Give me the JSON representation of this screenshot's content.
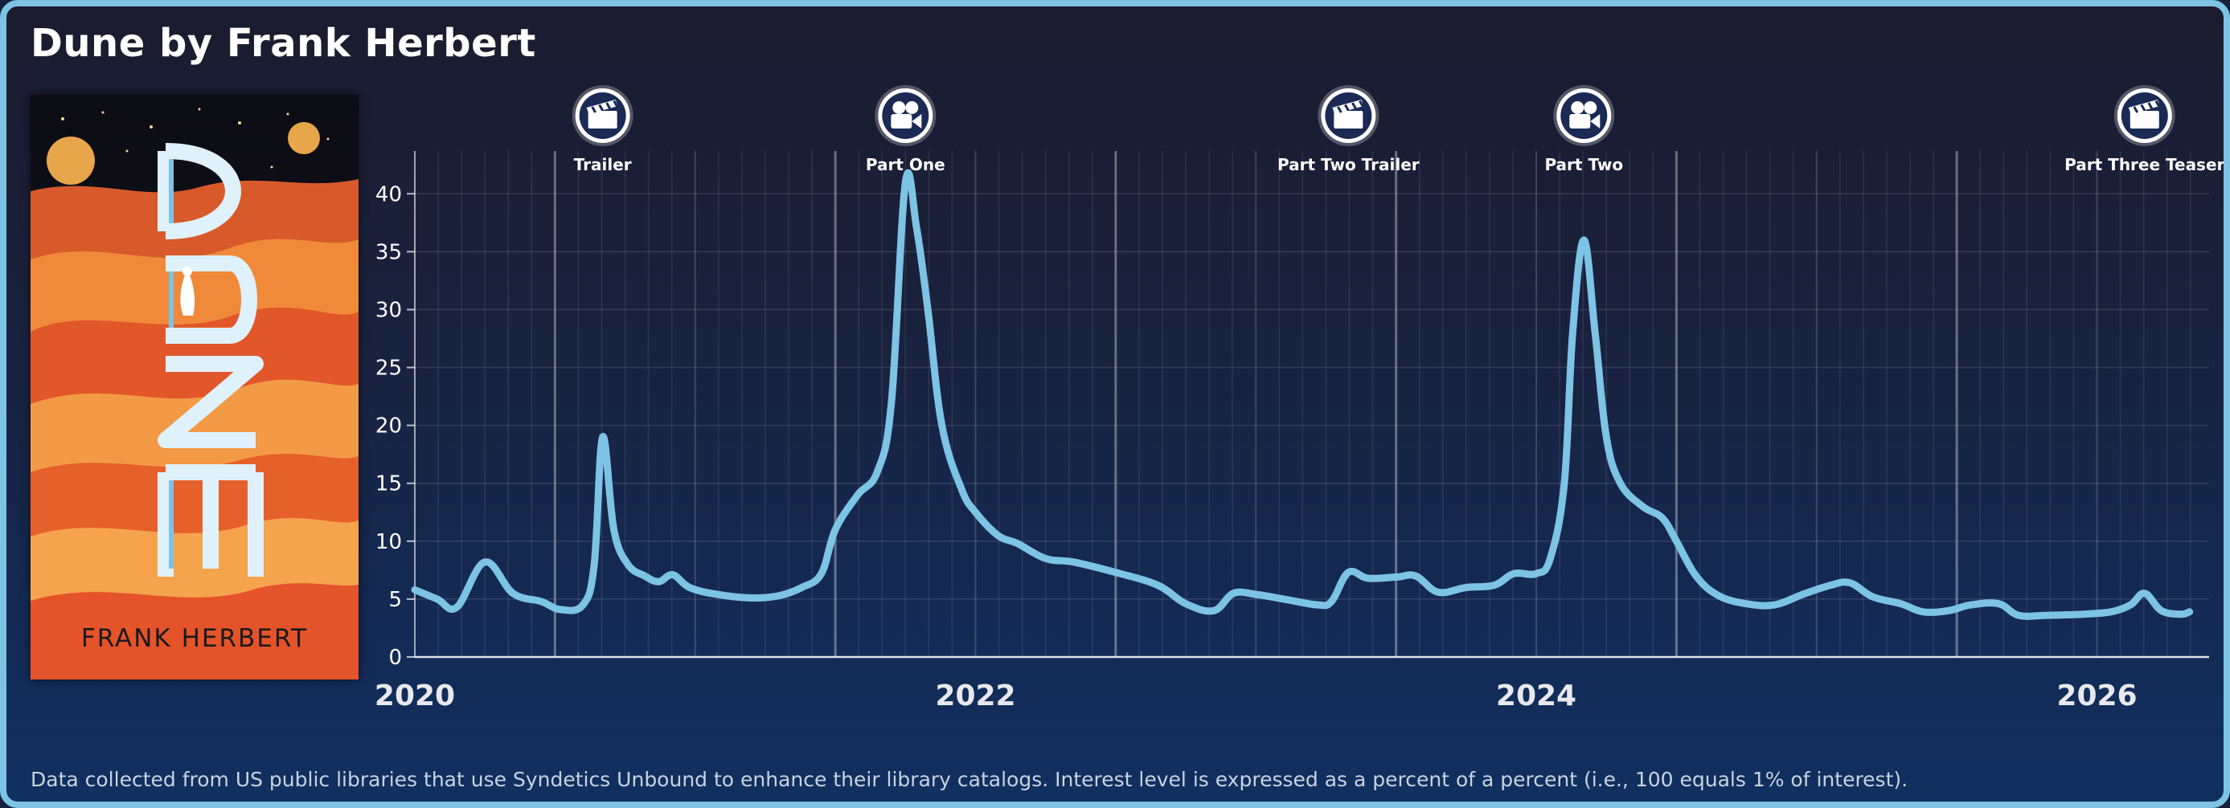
{
  "title": "Dune by Frank Herbert",
  "cover": {
    "author_text": "FRANK HERBERT"
  },
  "footnote": "Data collected from US public libraries that use Syndetics Unbound to enhance their library catalogs. Interest level is expressed as a percent of a percent (i.e., 100 equals 1% of interest).",
  "colors": {
    "line": "#7cc3e4",
    "frame": "#7cc3e4",
    "text": "#ffffff"
  },
  "chart_data": {
    "type": "line",
    "title": "",
    "xlabel": "",
    "ylabel": "",
    "xlim": [
      2020.0,
      2026.4
    ],
    "ylim": [
      0,
      43
    ],
    "yticks": [
      0,
      5,
      10,
      15,
      20,
      25,
      30,
      35,
      40
    ],
    "xticks": [
      2020,
      2022,
      2024,
      2026
    ],
    "xtick_labels": [
      "2020",
      "2022",
      "2024",
      "2026"
    ],
    "grid": true,
    "events": [
      {
        "label": "Trailer",
        "x": 2020.67,
        "icon": "clapperboard-icon"
      },
      {
        "label": "Part One",
        "x": 2021.75,
        "icon": "film-camera-icon"
      },
      {
        "label": "Part Two Trailer",
        "x": 2023.33,
        "icon": "clapperboard-icon"
      },
      {
        "label": "Part Two",
        "x": 2024.17,
        "icon": "film-camera-icon"
      },
      {
        "label": "Part Three Teaser",
        "x": 2026.17,
        "icon": "clapperboard-icon"
      }
    ],
    "series": [
      {
        "values": [
          [
            2020.0,
            5.8
          ],
          [
            2020.08,
            5.0
          ],
          [
            2020.15,
            4.3
          ],
          [
            2020.25,
            8.2
          ],
          [
            2020.35,
            5.5
          ],
          [
            2020.45,
            4.8
          ],
          [
            2020.52,
            4.1
          ],
          [
            2020.6,
            4.5
          ],
          [
            2020.64,
            8.0
          ],
          [
            2020.67,
            19.0
          ],
          [
            2020.71,
            11.0
          ],
          [
            2020.76,
            8.0
          ],
          [
            2020.82,
            7.0
          ],
          [
            2020.87,
            6.5
          ],
          [
            2020.92,
            7.1
          ],
          [
            2020.98,
            6.0
          ],
          [
            2021.08,
            5.4
          ],
          [
            2021.2,
            5.1
          ],
          [
            2021.3,
            5.3
          ],
          [
            2021.38,
            6.0
          ],
          [
            2021.45,
            7.2
          ],
          [
            2021.5,
            11.0
          ],
          [
            2021.58,
            14.0
          ],
          [
            2021.65,
            16.0
          ],
          [
            2021.7,
            22.0
          ],
          [
            2021.75,
            41.0
          ],
          [
            2021.79,
            37.0
          ],
          [
            2021.83,
            30.0
          ],
          [
            2021.88,
            20.0
          ],
          [
            2021.95,
            14.5
          ],
          [
            2022.0,
            12.5
          ],
          [
            2022.08,
            10.5
          ],
          [
            2022.15,
            9.8
          ],
          [
            2022.25,
            8.5
          ],
          [
            2022.35,
            8.2
          ],
          [
            2022.5,
            7.3
          ],
          [
            2022.65,
            6.2
          ],
          [
            2022.75,
            4.6
          ],
          [
            2022.85,
            4.0
          ],
          [
            2022.92,
            5.5
          ],
          [
            2023.0,
            5.4
          ],
          [
            2023.1,
            5.0
          ],
          [
            2023.22,
            4.5
          ],
          [
            2023.27,
            4.8
          ],
          [
            2023.33,
            7.3
          ],
          [
            2023.4,
            6.8
          ],
          [
            2023.5,
            6.9
          ],
          [
            2023.57,
            7.0
          ],
          [
            2023.65,
            5.6
          ],
          [
            2023.75,
            6.0
          ],
          [
            2023.85,
            6.2
          ],
          [
            2023.92,
            7.2
          ],
          [
            2024.0,
            7.2
          ],
          [
            2024.05,
            8.5
          ],
          [
            2024.1,
            15.0
          ],
          [
            2024.13,
            28.0
          ],
          [
            2024.17,
            36.0
          ],
          [
            2024.21,
            28.0
          ],
          [
            2024.25,
            19.0
          ],
          [
            2024.3,
            15.0
          ],
          [
            2024.38,
            13.0
          ],
          [
            2024.45,
            12.0
          ],
          [
            2024.5,
            10.0
          ],
          [
            2024.57,
            7.0
          ],
          [
            2024.65,
            5.3
          ],
          [
            2024.75,
            4.6
          ],
          [
            2024.85,
            4.5
          ],
          [
            2024.95,
            5.4
          ],
          [
            2025.05,
            6.2
          ],
          [
            2025.12,
            6.4
          ],
          [
            2025.2,
            5.2
          ],
          [
            2025.3,
            4.6
          ],
          [
            2025.38,
            3.9
          ],
          [
            2025.47,
            4.0
          ],
          [
            2025.55,
            4.5
          ],
          [
            2025.65,
            4.6
          ],
          [
            2025.72,
            3.6
          ],
          [
            2025.82,
            3.6
          ],
          [
            2025.95,
            3.7
          ],
          [
            2026.05,
            3.9
          ],
          [
            2026.12,
            4.5
          ],
          [
            2026.17,
            5.5
          ],
          [
            2026.23,
            4.0
          ],
          [
            2026.3,
            3.7
          ],
          [
            2026.33,
            3.9
          ]
        ]
      }
    ]
  }
}
